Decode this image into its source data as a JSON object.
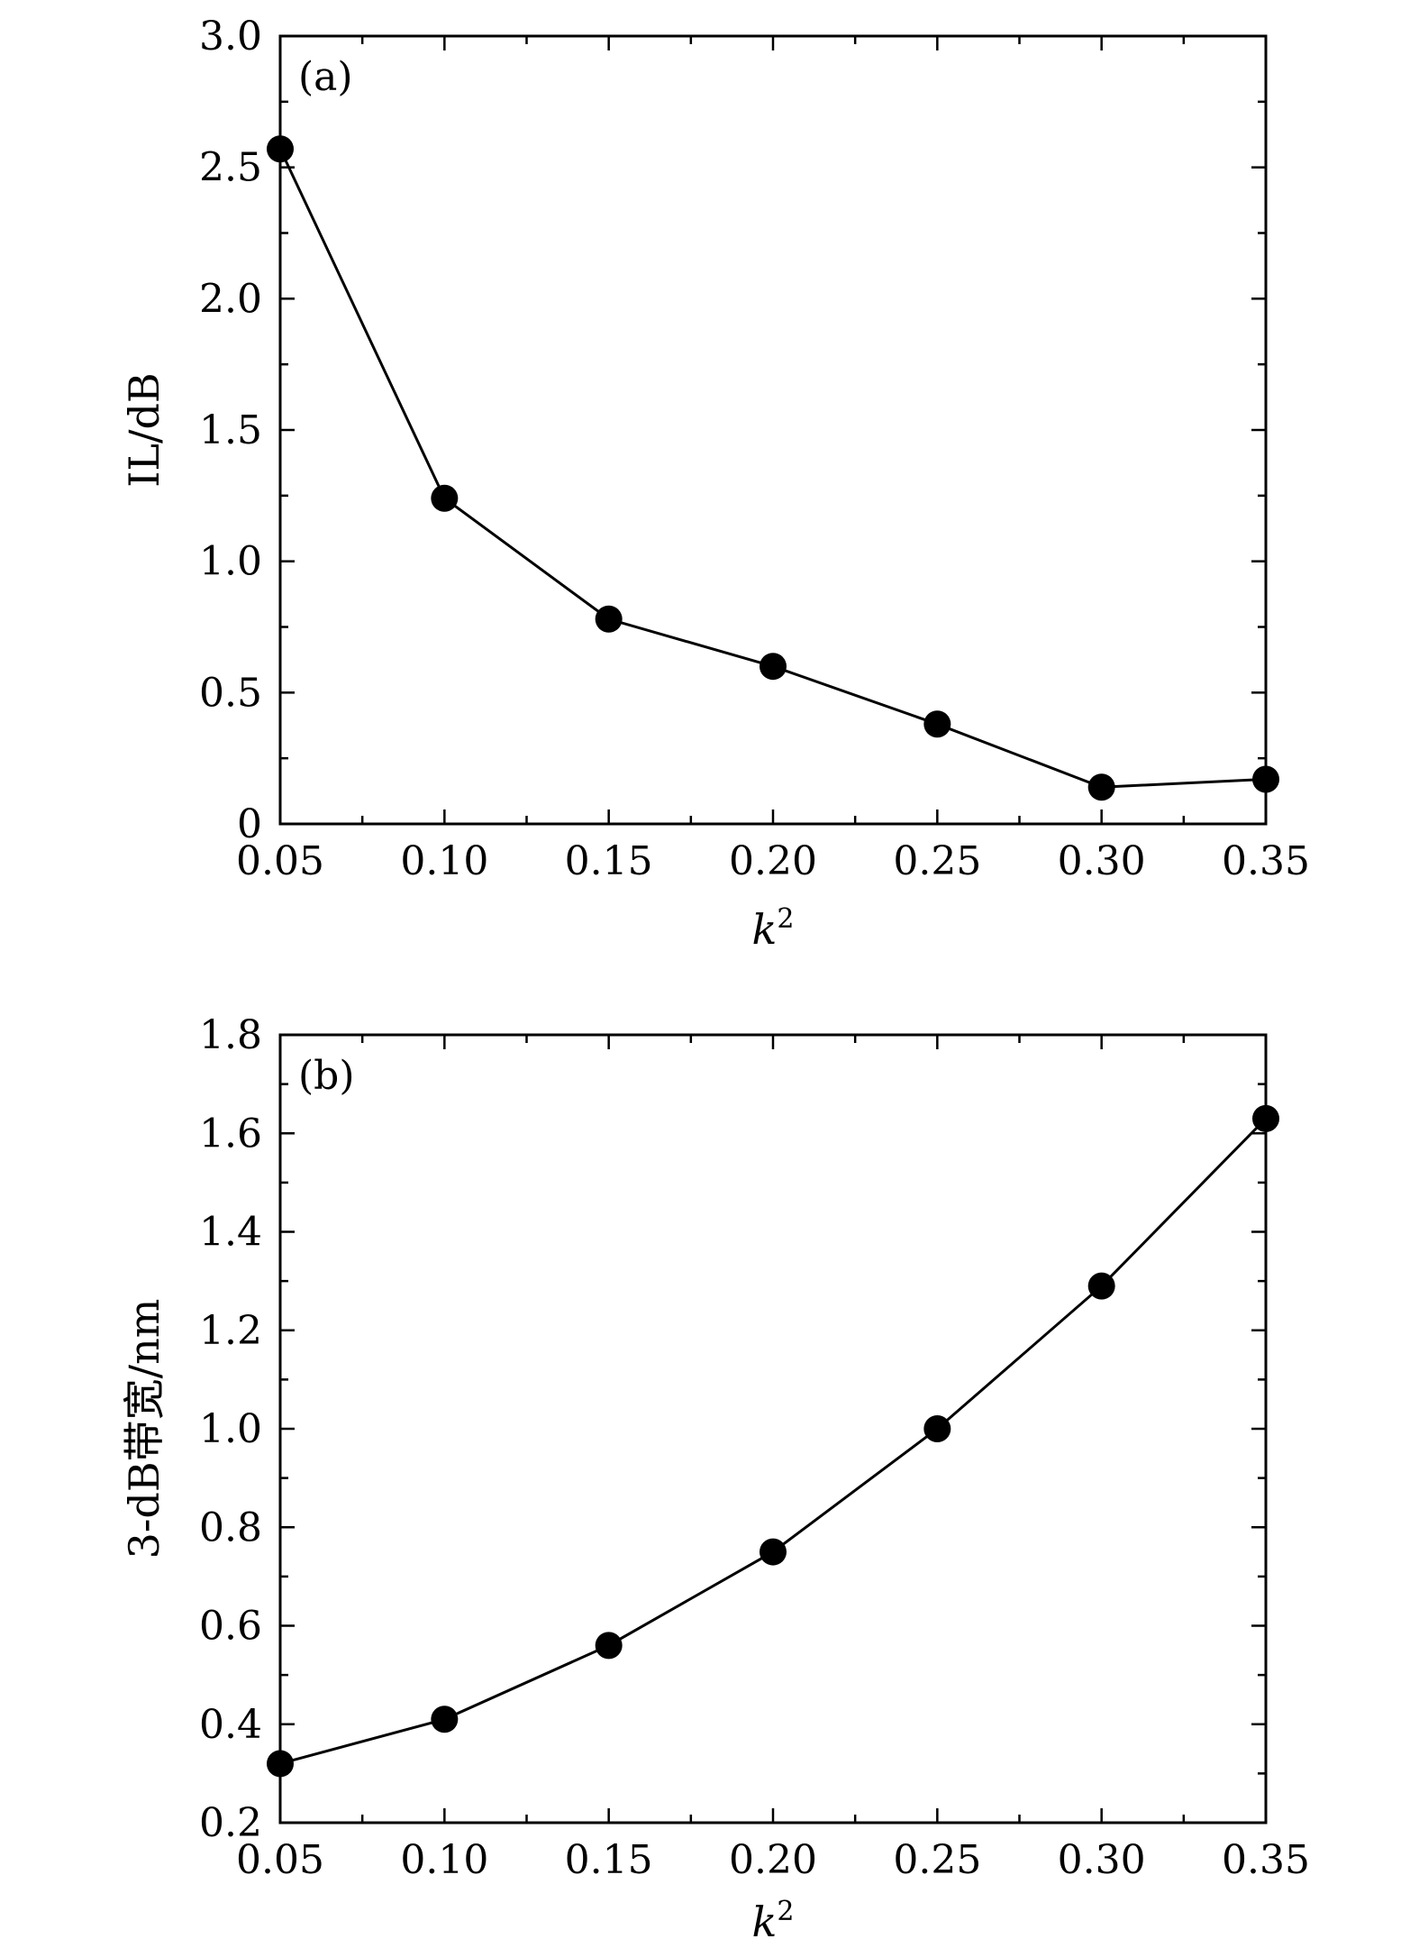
{
  "chart_data": [
    {
      "type": "line",
      "panel_label": "(a)",
      "xlabel": "k",
      "xlabel_sup": "2",
      "ylabel": "IL/dB",
      "xlim": [
        0.05,
        0.35
      ],
      "ylim": [
        0,
        3.0
      ],
      "x_ticks": [
        "0.05",
        "0.10",
        "0.15",
        "0.20",
        "0.25",
        "0.30",
        "0.35"
      ],
      "y_ticks": [
        "0",
        "0.5",
        "1.0",
        "1.5",
        "2.0",
        "2.5",
        "3.0"
      ],
      "grid": false,
      "legend": "none",
      "series": [
        {
          "name": "",
          "x": [
            0.05,
            0.1,
            0.15,
            0.2,
            0.25,
            0.3,
            0.35
          ],
          "y": [
            2.57,
            1.24,
            0.78,
            0.6,
            0.38,
            0.14,
            0.17
          ]
        }
      ]
    },
    {
      "type": "line",
      "panel_label": "(b)",
      "xlabel": "k",
      "xlabel_sup": "2",
      "ylabel": "3-dB带宽/nm",
      "xlim": [
        0.05,
        0.35
      ],
      "ylim": [
        0.2,
        1.8
      ],
      "x_ticks": [
        "0.05",
        "0.10",
        "0.15",
        "0.20",
        "0.25",
        "0.30",
        "0.35"
      ],
      "y_ticks": [
        "0.2",
        "0.4",
        "0.6",
        "0.8",
        "1.0",
        "1.2",
        "1.4",
        "1.6",
        "1.8"
      ],
      "grid": false,
      "legend": "none",
      "series": [
        {
          "name": "",
          "x": [
            0.05,
            0.1,
            0.15,
            0.2,
            0.25,
            0.3,
            0.35
          ],
          "y": [
            0.32,
            0.41,
            0.56,
            0.75,
            1.0,
            1.29,
            1.63
          ]
        }
      ]
    }
  ]
}
